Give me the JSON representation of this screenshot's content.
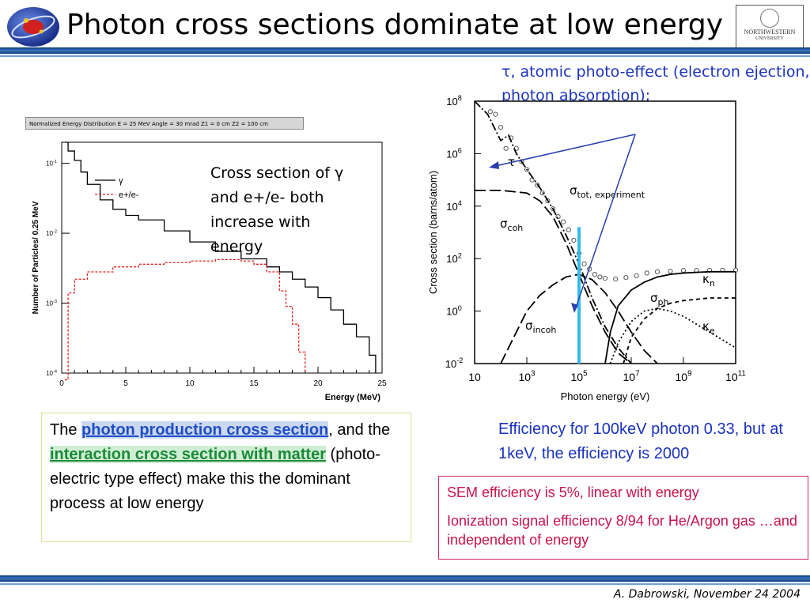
{
  "slide": {
    "title": "Photon cross sections dominate at low energy",
    "footer": "A. Dabrowski, November 24 2004",
    "logo_right": {
      "name": "NORTHWESTERN",
      "sub": "UNIVERSITY"
    }
  },
  "annotations": {
    "tau_note": "τ, atomic photo-effect (electron ejection, photon absorption);",
    "cross_note": "Cross section of γ and e+/e- both increase with energy",
    "efficiency_note": "Efficiency for 100keV photon 0.33, but at 1keV, the efficiency is 2000"
  },
  "description": {
    "prefix": "The ",
    "link1": "photon production cross section",
    "mid": ", and the ",
    "link2": "interaction cross section with matter",
    "suffix": " (photo-electric type effect) make this the dominant process at low energy"
  },
  "sem_box": {
    "line1": "SEM efficiency is 5%, linear with energy",
    "line2": "Ionization signal efficiency 8/94 for He/Argon gas …and independent of energy"
  },
  "colors": {
    "title_rule": "#2b63a8",
    "annotation_blue": "#1a32c0",
    "sem_red": "#c8124a",
    "link_blue": "#1e4ec5",
    "link_green": "#1a8a3a",
    "highlight_cyan": "#33bbee"
  },
  "chart_data": [
    {
      "type": "line",
      "header": "Normalized Energy Distribution E = 25 MeV Angle = 30 mrad Z1 = 0 cm Z2 = 100 cm",
      "xlabel": "Energy (MeV)",
      "ylabel": "Number of Particles/ 0.25 MeV",
      "xlim": [
        0,
        25
      ],
      "ylim": [
        0.0001,
        0.2
      ],
      "log_y": true,
      "x_ticks": [
        "0",
        "5",
        "10",
        "15",
        "20",
        "25"
      ],
      "y_ticks": [
        "10-1",
        "10-2",
        "10-3",
        "10-4"
      ],
      "legend": [
        "γ",
        "e+/e-"
      ],
      "series": [
        {
          "name": "γ",
          "color": "#000000",
          "dash": "solid",
          "x": [
            0.25,
            0.5,
            1,
            1.5,
            2,
            3,
            4,
            5,
            6,
            8,
            10,
            12,
            14,
            16,
            17,
            18,
            19,
            20,
            21,
            22,
            23,
            24,
            24.5
          ],
          "y": [
            0.2,
            0.15,
            0.11,
            0.075,
            0.05,
            0.03,
            0.022,
            0.018,
            0.0155,
            0.0108,
            0.0075,
            0.0055,
            0.0043,
            0.0033,
            0.0028,
            0.0022,
            0.0017,
            0.0012,
            0.0008,
            0.0005,
            0.00033,
            0.00018,
            0.0001
          ]
        },
        {
          "name": "e+/e-",
          "color": "#e02020",
          "dash": "dashed",
          "x": [
            0.25,
            0.5,
            1,
            2,
            4,
            6,
            8,
            10,
            12,
            14,
            15,
            16,
            17,
            17.5,
            18,
            18.5,
            19
          ],
          "y": [
            8e-05,
            0.0014,
            0.0022,
            0.0028,
            0.0033,
            0.0036,
            0.0038,
            0.004,
            0.0042,
            0.004,
            0.0036,
            0.0028,
            0.0015,
            0.0009,
            0.0005,
            0.0002,
            0.0001
          ]
        }
      ]
    },
    {
      "type": "line",
      "xlabel": "Photon energy (eV)",
      "ylabel": "Cross section (barns/atom)",
      "log_x": true,
      "log_y": true,
      "x_ticks": [
        "10",
        "10^3",
        "10^5",
        "10^7",
        "10^9",
        "10^11"
      ],
      "y_ticks": [
        "10^8",
        "10^6",
        "10^4",
        "10^2",
        "10^0",
        "10^-2"
      ],
      "xlim_exp": [
        1,
        11
      ],
      "ylim_exp": [
        -2,
        8
      ],
      "labels": [
        "σtot, experiment",
        "τ",
        "σcoh",
        "σincoh",
        "σph",
        "κn",
        "κe"
      ],
      "series": [
        {
          "name": "σtot, experiment",
          "style": "circles",
          "x_exp": [
            1.6,
            1.8,
            2.0,
            2.2,
            2.4,
            2.6,
            2.8,
            3.0,
            3.2,
            3.4,
            3.6,
            3.8,
            4.0,
            4.2,
            4.4,
            4.6,
            4.8,
            5.0,
            5.2,
            5.4,
            5.6,
            5.8,
            6.0,
            6.4,
            6.8,
            7.2,
            7.6,
            8.0,
            8.5,
            9.0,
            9.5,
            10.0,
            10.5,
            11.0
          ],
          "y_exp": [
            7.6,
            7.5,
            7.0,
            6.2,
            6.6,
            6.2,
            5.7,
            5.4,
            5.0,
            4.8,
            4.5,
            4.2,
            3.9,
            3.6,
            3.4,
            3.1,
            2.7,
            2.2,
            1.8,
            1.6,
            1.4,
            1.3,
            1.25,
            1.22,
            1.28,
            1.35,
            1.45,
            1.5,
            1.52,
            1.55,
            1.55,
            1.56,
            1.56,
            1.56
          ]
        },
        {
          "name": "τ",
          "style": "dash-dot",
          "x_exp": [
            1.0,
            1.5,
            2.0,
            2.3,
            2.6,
            3.0,
            3.5,
            4.0,
            4.5,
            5.0,
            5.5,
            6.0,
            6.5,
            7.0
          ],
          "y_exp": [
            8.0,
            7.5,
            6.5,
            6.7,
            6.0,
            5.4,
            4.7,
            3.9,
            2.9,
            1.8,
            0.5,
            -0.6,
            -1.4,
            -2.0
          ]
        },
        {
          "name": "σcoh",
          "style": "long-dash",
          "x_exp": [
            1.0,
            2.0,
            3.0,
            3.5,
            4.0,
            4.5,
            5.0,
            5.5,
            6.0,
            6.5,
            7.0
          ],
          "y_exp": [
            4.6,
            4.6,
            4.5,
            4.2,
            3.6,
            2.6,
            1.4,
            0.2,
            -0.8,
            -1.6,
            -2.0
          ]
        },
        {
          "name": "σincoh",
          "style": "long-dash",
          "x_exp": [
            2.0,
            2.5,
            3.0,
            3.5,
            4.0,
            4.5,
            5.0,
            5.5,
            6.0,
            6.5,
            7.0,
            7.5,
            8.0
          ],
          "y_exp": [
            -2.0,
            -1.0,
            0.0,
            0.6,
            1.0,
            1.3,
            1.4,
            1.2,
            0.7,
            0.0,
            -0.8,
            -1.5,
            -2.0
          ]
        },
        {
          "name": "σph",
          "style": "dotted",
          "x_exp": [
            6.2,
            6.5,
            7.0,
            7.5,
            8.0,
            8.5,
            9.0,
            9.5,
            10.0,
            10.5,
            11.0
          ],
          "y_exp": [
            -2.0,
            -1.2,
            -0.4,
            0.0,
            0.1,
            0.0,
            -0.2,
            -0.5,
            -0.8,
            -1.1,
            -1.4
          ]
        },
        {
          "name": "κn",
          "style": "solid",
          "x_exp": [
            6.0,
            6.2,
            6.5,
            7.0,
            7.5,
            8.0,
            8.5,
            9.0,
            10.0,
            11.0
          ],
          "y_exp": [
            -2.0,
            -0.8,
            0.2,
            0.8,
            1.1,
            1.3,
            1.4,
            1.45,
            1.5,
            1.5
          ]
        },
        {
          "name": "κe",
          "style": "short-dash",
          "x_exp": [
            6.7,
            7.0,
            7.5,
            8.0,
            8.5,
            9.0,
            10.0,
            11.0
          ],
          "y_exp": [
            -2.0,
            -1.0,
            -0.3,
            0.1,
            0.3,
            0.4,
            0.5,
            0.5
          ]
        }
      ],
      "highlight_energy_exp": 5
    }
  ]
}
